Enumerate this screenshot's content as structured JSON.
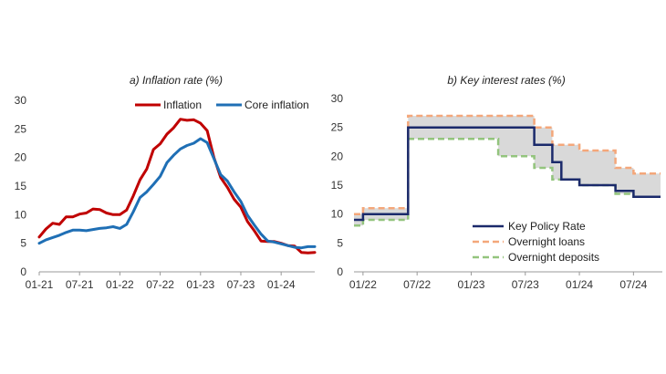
{
  "chart_data": [
    {
      "type": "line",
      "title": "a)    Inflation rate (%)",
      "xlabel": "",
      "ylabel": "",
      "ylim": [
        0,
        30
      ],
      "yticks": [
        "0",
        "5",
        "10",
        "15",
        "20",
        "25",
        "30"
      ],
      "xticks": [
        "01-21",
        "07-21",
        "01-22",
        "07-22",
        "01-23",
        "07-23",
        "01-24"
      ],
      "grid": false,
      "legend_position": "top-right",
      "x": [
        "01-21",
        "02-21",
        "03-21",
        "04-21",
        "05-21",
        "06-21",
        "07-21",
        "08-21",
        "09-21",
        "10-21",
        "11-21",
        "12-21",
        "01-22",
        "02-22",
        "03-22",
        "04-22",
        "05-22",
        "06-22",
        "07-22",
        "08-22",
        "09-22",
        "10-22",
        "11-22",
        "12-22",
        "01-23",
        "02-23",
        "03-23",
        "04-23",
        "05-23",
        "06-23",
        "07-23",
        "08-23",
        "09-23",
        "10-23",
        "11-23",
        "12-23",
        "01-24",
        "02-24",
        "03-24",
        "04-24",
        "05-24",
        "06-24"
      ],
      "series": [
        {
          "name": "Inflation",
          "color": "#c00000",
          "values": [
            6.1,
            7.5,
            8.5,
            8.3,
            9.6,
            9.6,
            10.1,
            10.3,
            11.0,
            10.9,
            10.3,
            10.0,
            10.0,
            10.8,
            13.3,
            16.1,
            18.0,
            21.4,
            22.4,
            24.1,
            25.2,
            26.7,
            26.5,
            26.6,
            26.0,
            24.7,
            20.0,
            16.5,
            14.8,
            12.7,
            11.3,
            8.8,
            7.2,
            5.4,
            5.3,
            5.3,
            5.0,
            4.6,
            4.5,
            3.4,
            3.3,
            3.4
          ]
        },
        {
          "name": "Core inflation",
          "color": "#1f6fb5",
          "values": [
            5.0,
            5.6,
            6.0,
            6.4,
            6.9,
            7.3,
            7.3,
            7.2,
            7.4,
            7.6,
            7.7,
            7.9,
            7.6,
            8.3,
            10.5,
            13.0,
            14.0,
            15.3,
            16.7,
            19.1,
            20.4,
            21.5,
            22.1,
            22.5,
            23.3,
            22.6,
            19.8,
            17.0,
            15.9,
            14.0,
            12.3,
            9.9,
            8.2,
            6.6,
            5.4,
            5.2,
            4.9,
            4.6,
            4.3,
            4.2,
            4.4,
            4.4
          ]
        }
      ]
    },
    {
      "type": "line",
      "title": "b)    Key interest rates (%)",
      "xlabel": "",
      "ylabel": "",
      "ylim": [
        0,
        30
      ],
      "yticks": [
        "0",
        "5",
        "10",
        "15",
        "20",
        "25",
        "30"
      ],
      "xticks": [
        "01/22",
        "07/22",
        "01/23",
        "07/23",
        "01/24",
        "07/24"
      ],
      "grid": false,
      "legend_position": "bottom-right",
      "shaded_band": "between Overnight loans and Overnight deposits",
      "step": true,
      "x": [
        "12/21",
        "01/22",
        "04/22",
        "05/22",
        "06/22",
        "09/22",
        "12/22",
        "03/23",
        "04/23",
        "06/23",
        "07/23",
        "08/23",
        "09/23",
        "10/23",
        "11/23",
        "12/23",
        "01/24",
        "02/24",
        "03/24",
        "04/24",
        "05/24",
        "06/24",
        "07/24",
        "08/24",
        "09/24"
      ],
      "series": [
        {
          "name": "Key Policy Rate",
          "color": "#1b2a6b",
          "style": "solid",
          "values": [
            9,
            10,
            10,
            10,
            25,
            25,
            25,
            25,
            25,
            25,
            25,
            22,
            22,
            19,
            16,
            16,
            15,
            15,
            15,
            15,
            14,
            14,
            13,
            13,
            13
          ]
        },
        {
          "name": "Overnight loans",
          "color": "#f4a77a",
          "style": "dashed",
          "values": [
            10,
            11,
            11,
            11,
            27,
            27,
            27,
            27,
            27,
            27,
            27,
            25,
            25,
            22,
            22,
            22,
            21,
            21,
            21,
            21,
            18,
            18,
            17,
            17,
            17
          ]
        },
        {
          "name": "Overnight deposits",
          "color": "#93c47d",
          "style": "dashed",
          "values": [
            8,
            9,
            9,
            9,
            23,
            23,
            23,
            23,
            20,
            20,
            20,
            18,
            18,
            16,
            16,
            16,
            15,
            15,
            15,
            15,
            13.5,
            13.5,
            13,
            13,
            13
          ]
        }
      ]
    }
  ]
}
